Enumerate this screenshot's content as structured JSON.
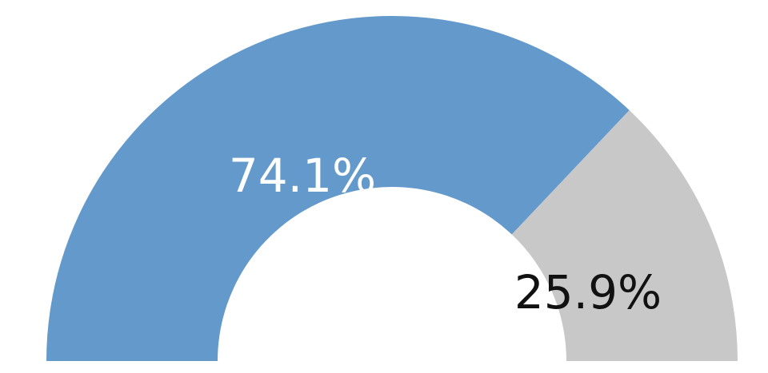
{
  "chart_data": {
    "type": "pie",
    "subtype": "semi-donut",
    "slices": [
      {
        "value": 74.1,
        "label": "74.1%",
        "color": "#6399CB",
        "label_color": "#FFFFFF"
      },
      {
        "value": 25.9,
        "label": "25.9%",
        "color": "#C8C8C8",
        "label_color": "#111111"
      }
    ]
  }
}
